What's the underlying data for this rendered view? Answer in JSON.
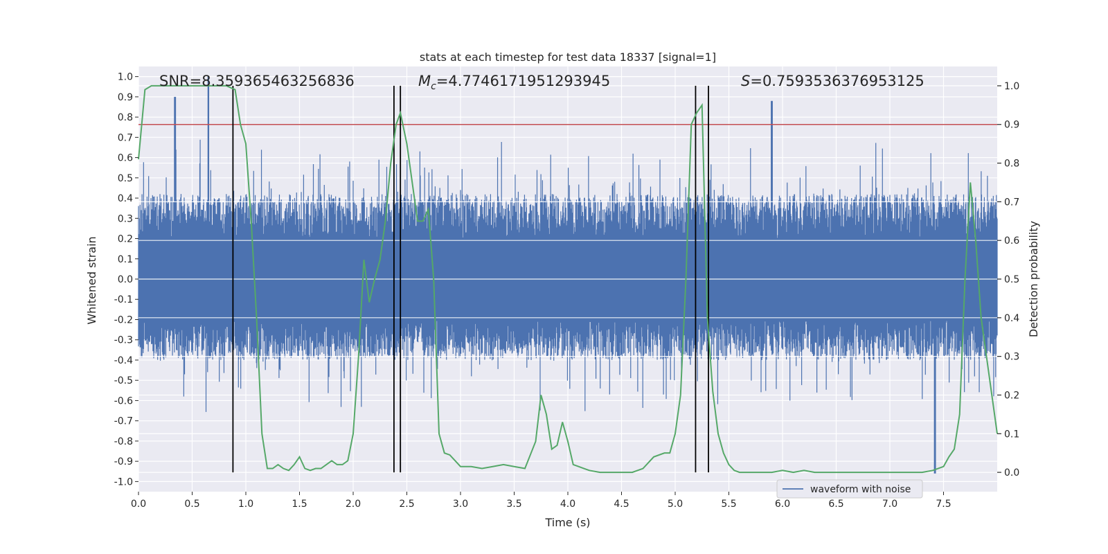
{
  "chart_data": {
    "type": "line",
    "title": "stats at each timestep for test data 18337 [signal=1]",
    "xlabel": "Time (s)",
    "ylabel_left": "Whitened strain",
    "ylabel_right": "Detection probability",
    "xlim": [
      0.0,
      8.0
    ],
    "ylim_left": [
      -1.05,
      1.05
    ],
    "ylim_right": [
      -0.05,
      1.05
    ],
    "x_ticks": [
      "0.0",
      "0.5",
      "1.0",
      "1.5",
      "2.0",
      "2.5",
      "3.0",
      "3.5",
      "4.0",
      "4.5",
      "5.0",
      "5.5",
      "6.0",
      "6.5",
      "7.0",
      "7.5"
    ],
    "y_left_ticks": [
      "-1.0",
      "-0.9",
      "-0.8",
      "-0.7",
      "-0.6",
      "-0.5",
      "-0.4",
      "-0.3",
      "-0.2",
      "-0.1",
      "0.0",
      "0.1",
      "0.2",
      "0.3",
      "0.4",
      "0.5",
      "0.6",
      "0.7",
      "0.8",
      "0.9",
      "1.0"
    ],
    "y_right_ticks": [
      "0.0",
      "0.1",
      "0.2",
      "0.3",
      "0.4",
      "0.5",
      "0.6",
      "0.7",
      "0.8",
      "0.9",
      "1.0"
    ],
    "grid": true,
    "threshold": {
      "axis": "right",
      "value": 0.9,
      "color": "#c44e52"
    },
    "vertical_markers": [
      0.88,
      2.38,
      2.44,
      5.19,
      5.31
    ],
    "annotations": {
      "snr": "SNR=8.359365463256836",
      "mc_sym": "M",
      "mc_sub": "c",
      "mc_val": "=4.7746171951293945",
      "s_sym": "S",
      "s_val": "=0.7593536376953125"
    },
    "series": [
      {
        "name": "waveform with noise",
        "axis": "left",
        "color": "#4c72b0",
        "description_values": "dense noisy strain signal, mostly between -0.55 and 0.65, spikes to about 1.0 near t=0.65"
      },
      {
        "name": "detection probability",
        "axis": "right",
        "color": "#55a868",
        "x": [
          0.0,
          0.06,
          0.12,
          0.2,
          0.3,
          0.4,
          0.5,
          0.6,
          0.7,
          0.82,
          0.9,
          0.95,
          1.0,
          1.05,
          1.1,
          1.15,
          1.2,
          1.25,
          1.3,
          1.35,
          1.4,
          1.45,
          1.5,
          1.55,
          1.6,
          1.65,
          1.7,
          1.75,
          1.8,
          1.85,
          1.9,
          1.95,
          2.0,
          2.05,
          2.1,
          2.15,
          2.2,
          2.25,
          2.3,
          2.35,
          2.4,
          2.44,
          2.5,
          2.55,
          2.6,
          2.65,
          2.7,
          2.75,
          2.8,
          2.85,
          2.9,
          2.95,
          3.0,
          3.1,
          3.2,
          3.3,
          3.4,
          3.5,
          3.6,
          3.7,
          3.75,
          3.8,
          3.85,
          3.9,
          3.95,
          4.0,
          4.05,
          4.1,
          4.15,
          4.2,
          4.3,
          4.4,
          4.5,
          4.6,
          4.7,
          4.8,
          4.9,
          4.95,
          5.0,
          5.05,
          5.1,
          5.15,
          5.2,
          5.25,
          5.3,
          5.35,
          5.4,
          5.45,
          5.5,
          5.55,
          5.6,
          5.7,
          5.8,
          5.9,
          6.0,
          6.1,
          6.2,
          6.3,
          6.4,
          6.5,
          6.6,
          6.7,
          6.8,
          6.9,
          7.0,
          7.1,
          7.2,
          7.3,
          7.4,
          7.5,
          7.55,
          7.6,
          7.65,
          7.7,
          7.75,
          7.8,
          7.85,
          7.9,
          7.95,
          8.0
        ],
        "values": [
          0.81,
          0.99,
          1.0,
          1.0,
          1.0,
          1.0,
          1.0,
          1.0,
          1.0,
          1.0,
          0.99,
          0.9,
          0.85,
          0.65,
          0.4,
          0.1,
          0.01,
          0.01,
          0.02,
          0.01,
          0.005,
          0.02,
          0.04,
          0.01,
          0.005,
          0.01,
          0.01,
          0.02,
          0.03,
          0.02,
          0.02,
          0.03,
          0.1,
          0.3,
          0.55,
          0.44,
          0.5,
          0.55,
          0.65,
          0.8,
          0.9,
          0.93,
          0.85,
          0.75,
          0.65,
          0.65,
          0.68,
          0.5,
          0.1,
          0.05,
          0.045,
          0.03,
          0.015,
          0.015,
          0.01,
          0.015,
          0.02,
          0.015,
          0.01,
          0.08,
          0.2,
          0.15,
          0.06,
          0.07,
          0.13,
          0.08,
          0.02,
          0.015,
          0.01,
          0.005,
          0.0,
          0.0,
          0.0,
          0.0,
          0.01,
          0.04,
          0.05,
          0.05,
          0.1,
          0.2,
          0.5,
          0.9,
          0.93,
          0.95,
          0.4,
          0.21,
          0.1,
          0.05,
          0.02,
          0.005,
          0.0,
          0.0,
          0.0,
          0.0,
          0.005,
          0.0,
          0.005,
          0.0,
          0.0,
          0.0,
          0.0,
          0.0,
          0.0,
          0.0,
          0.0,
          0.0,
          0.0,
          0.0,
          0.005,
          0.015,
          0.04,
          0.06,
          0.15,
          0.5,
          0.75,
          0.6,
          0.4,
          0.3,
          0.2,
          0.1
        ]
      }
    ],
    "legend": [
      {
        "label": "waveform with noise",
        "color": "#4c72b0"
      }
    ]
  }
}
